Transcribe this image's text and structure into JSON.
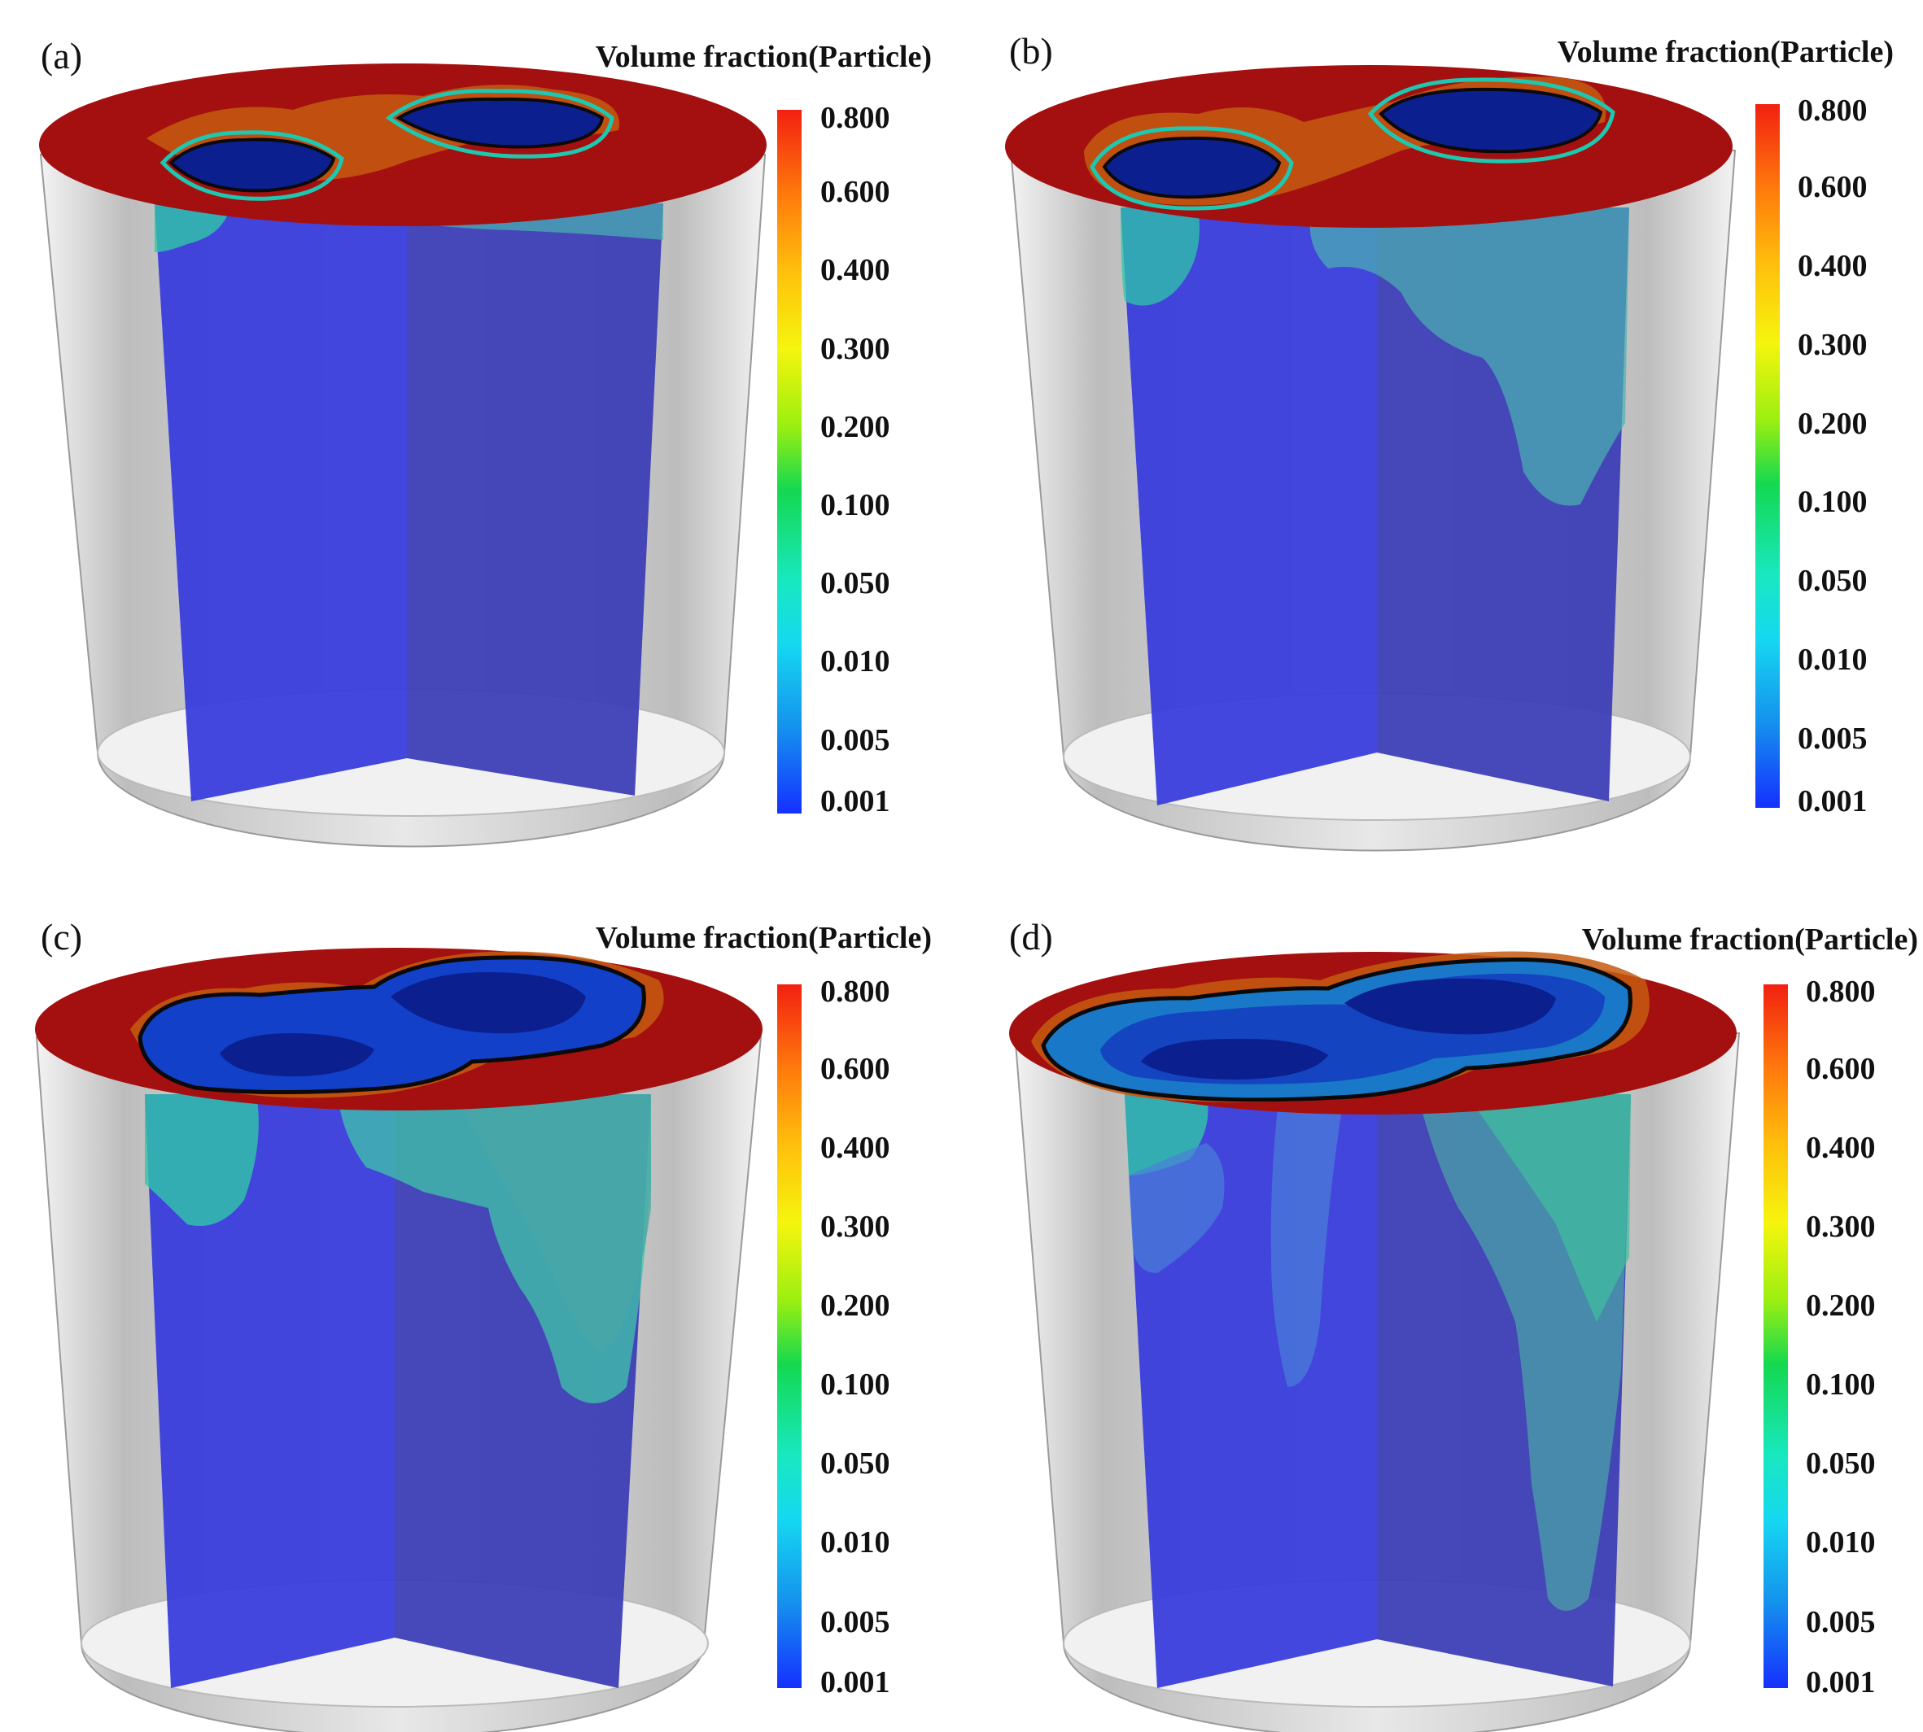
{
  "panels": [
    {
      "label": "(a)",
      "legend_title": "Volume fraction(Particle)"
    },
    {
      "label": "(b)",
      "legend_title": "Volume fraction(Particle)"
    },
    {
      "label": "(c)",
      "legend_title": "Volume fraction(Particle)"
    },
    {
      "label": "(d)",
      "legend_title": "Volume fraction(Particle)"
    }
  ],
  "colorbar": {
    "ticks": [
      "0.800",
      "0.600",
      "0.400",
      "0.300",
      "0.200",
      "0.100",
      "0.050",
      "0.010",
      "0.005",
      "0.001"
    ],
    "colors": {
      "high": "#f22010",
      "mid": "#f5f50d",
      "low_mid": "#14d850",
      "cyan": "#15d8f0",
      "low": "#1530ff"
    }
  },
  "colors": {
    "surface_red": "#9c0d0d",
    "surface_orange": "#c1520f",
    "plane_blue": "#3a3cd0",
    "plane_blue_right": "#3a3cb0",
    "void_navy": "#0b1f8f",
    "cloud_teal": "#3aa6a6",
    "cloud_green": "#2fd3a0",
    "cylinder_gray": "#c8c8c8"
  }
}
